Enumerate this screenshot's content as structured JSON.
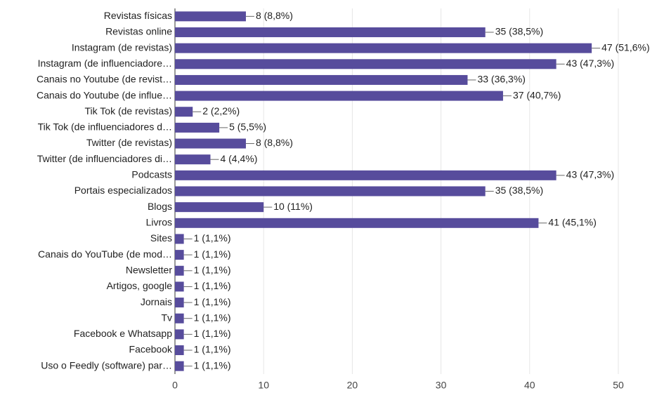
{
  "chart_data": {
    "type": "barh",
    "categories": [
      "Revistas físicas",
      "Revistas online",
      "Instagram (de revistas)",
      "Instagram (de influenciadore…",
      "Canais no Youtube (de revist…",
      "Canais do Youtube (de influe…",
      "Tik Tok (de revistas)",
      "Tik Tok (de influenciadores d…",
      "Twitter (de revistas)",
      "Twitter (de influenciadores di…",
      "Podcasts",
      "Portais especializados",
      "Blogs",
      "Livros",
      "Sites",
      "Canais do YouTube (de mod…",
      "Newsletter",
      "Artigos, google",
      "Jornais",
      "Tv",
      "Facebook e Whatsapp",
      "Facebook",
      "Uso o Feedly (software) par…"
    ],
    "values": [
      8,
      35,
      47,
      43,
      33,
      37,
      2,
      5,
      8,
      4,
      43,
      35,
      10,
      41,
      1,
      1,
      1,
      1,
      1,
      1,
      1,
      1,
      1
    ],
    "value_labels": [
      "8 (8,8%)",
      "35 (38,5%)",
      "47 (51,6%)",
      "43 (47,3%)",
      "33 (36,3%)",
      "37 (40,7%)",
      "2 (2,2%)",
      "5 (5,5%)",
      "8 (8,8%)",
      "4 (4,4%)",
      "43 (47,3%)",
      "35 (38,5%)",
      "10 (11%)",
      "41 (45,1%)",
      "1 (1,1%)",
      "1 (1,1%)",
      "1 (1,1%)",
      "1 (1,1%)",
      "1 (1,1%)",
      "1 (1,1%)",
      "1 (1,1%)",
      "1 (1,1%)",
      "1 (1,1%)"
    ],
    "color": "#574c9c",
    "xlim": [
      0,
      50
    ],
    "xticks": [
      0,
      10,
      20,
      30,
      40,
      50
    ],
    "grid": true
  }
}
